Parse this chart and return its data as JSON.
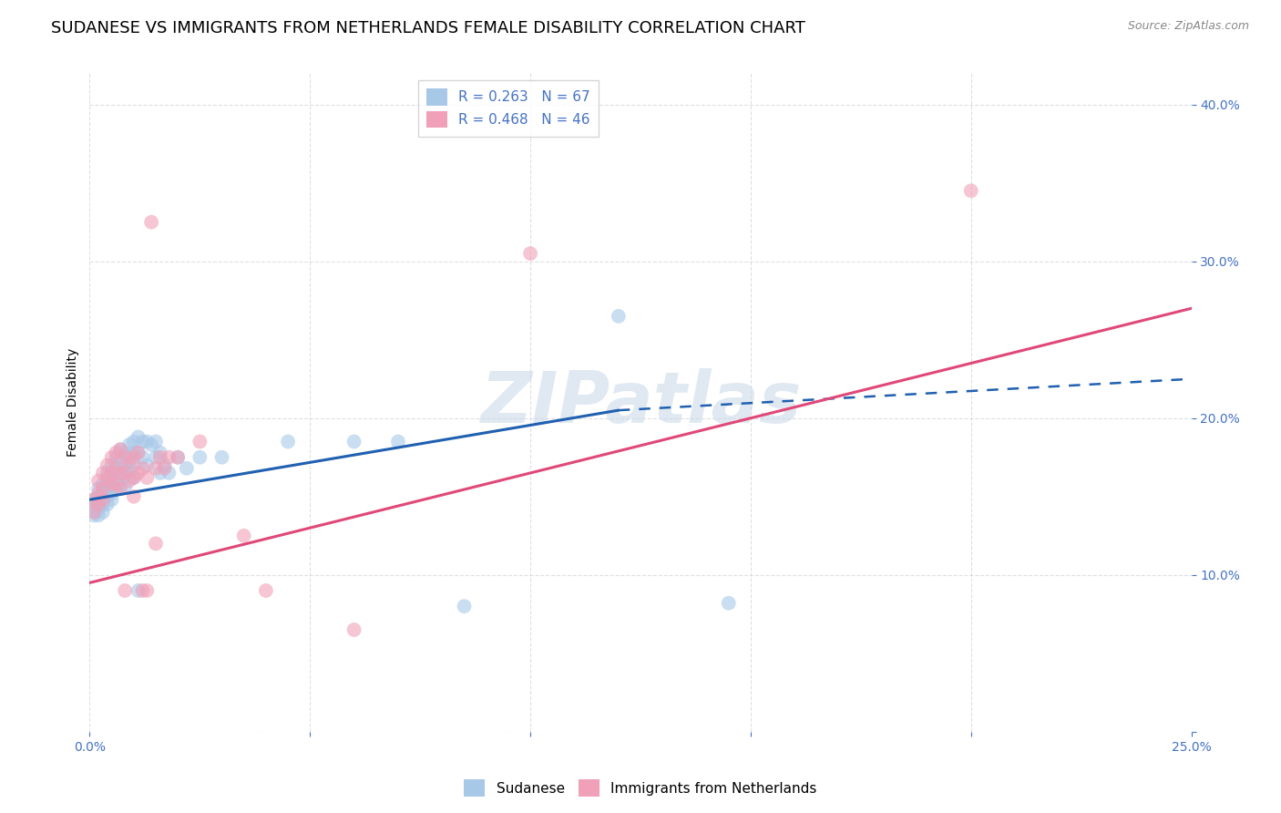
{
  "title": "SUDANESE VS IMMIGRANTS FROM NETHERLANDS FEMALE DISABILITY CORRELATION CHART",
  "source": "Source: ZipAtlas.com",
  "ylabel": "Female Disability",
  "watermark": "ZIPatlas",
  "xlim": [
    0.0,
    0.25
  ],
  "ylim": [
    0.0,
    0.42
  ],
  "xticks": [
    0.0,
    0.05,
    0.1,
    0.15,
    0.2,
    0.25
  ],
  "yticks": [
    0.0,
    0.1,
    0.2,
    0.3,
    0.4
  ],
  "sudanese_color": "#a8c8e8",
  "netherlands_color": "#f0a0b8",
  "line_blue_color": "#2060b0",
  "line_pink_color": "#e04878",
  "legend_R1": "R = 0.263",
  "legend_N1": "N = 67",
  "legend_R2": "R = 0.468",
  "legend_N2": "N = 46",
  "sudanese_points": [
    [
      0.001,
      0.148
    ],
    [
      0.001,
      0.145
    ],
    [
      0.001,
      0.14
    ],
    [
      0.001,
      0.138
    ],
    [
      0.002,
      0.155
    ],
    [
      0.002,
      0.15
    ],
    [
      0.002,
      0.145
    ],
    [
      0.002,
      0.142
    ],
    [
      0.002,
      0.138
    ],
    [
      0.003,
      0.158
    ],
    [
      0.003,
      0.155
    ],
    [
      0.003,
      0.15
    ],
    [
      0.003,
      0.145
    ],
    [
      0.003,
      0.14
    ],
    [
      0.004,
      0.165
    ],
    [
      0.004,
      0.16
    ],
    [
      0.004,
      0.155
    ],
    [
      0.004,
      0.15
    ],
    [
      0.004,
      0.145
    ],
    [
      0.005,
      0.17
    ],
    [
      0.005,
      0.165
    ],
    [
      0.005,
      0.158
    ],
    [
      0.005,
      0.152
    ],
    [
      0.005,
      0.148
    ],
    [
      0.006,
      0.175
    ],
    [
      0.006,
      0.168
    ],
    [
      0.006,
      0.162
    ],
    [
      0.006,
      0.155
    ],
    [
      0.007,
      0.18
    ],
    [
      0.007,
      0.172
    ],
    [
      0.007,
      0.165
    ],
    [
      0.007,
      0.158
    ],
    [
      0.008,
      0.178
    ],
    [
      0.008,
      0.17
    ],
    [
      0.008,
      0.163
    ],
    [
      0.008,
      0.156
    ],
    [
      0.009,
      0.183
    ],
    [
      0.009,
      0.175
    ],
    [
      0.009,
      0.167
    ],
    [
      0.01,
      0.185
    ],
    [
      0.01,
      0.178
    ],
    [
      0.01,
      0.17
    ],
    [
      0.01,
      0.162
    ],
    [
      0.011,
      0.188
    ],
    [
      0.011,
      0.178
    ],
    [
      0.011,
      0.09
    ],
    [
      0.012,
      0.185
    ],
    [
      0.012,
      0.175
    ],
    [
      0.013,
      0.185
    ],
    [
      0.013,
      0.17
    ],
    [
      0.014,
      0.183
    ],
    [
      0.015,
      0.185
    ],
    [
      0.015,
      0.175
    ],
    [
      0.016,
      0.178
    ],
    [
      0.016,
      0.165
    ],
    [
      0.017,
      0.17
    ],
    [
      0.018,
      0.165
    ],
    [
      0.02,
      0.175
    ],
    [
      0.022,
      0.168
    ],
    [
      0.025,
      0.175
    ],
    [
      0.03,
      0.175
    ],
    [
      0.045,
      0.185
    ],
    [
      0.06,
      0.185
    ],
    [
      0.07,
      0.185
    ],
    [
      0.085,
      0.08
    ],
    [
      0.12,
      0.265
    ],
    [
      0.145,
      0.082
    ]
  ],
  "netherlands_points": [
    [
      0.001,
      0.148
    ],
    [
      0.001,
      0.14
    ],
    [
      0.002,
      0.16
    ],
    [
      0.002,
      0.152
    ],
    [
      0.002,
      0.145
    ],
    [
      0.003,
      0.165
    ],
    [
      0.003,
      0.155
    ],
    [
      0.003,
      0.148
    ],
    [
      0.004,
      0.17
    ],
    [
      0.004,
      0.162
    ],
    [
      0.005,
      0.175
    ],
    [
      0.005,
      0.165
    ],
    [
      0.005,
      0.158
    ],
    [
      0.006,
      0.178
    ],
    [
      0.006,
      0.168
    ],
    [
      0.006,
      0.158
    ],
    [
      0.007,
      0.18
    ],
    [
      0.007,
      0.165
    ],
    [
      0.007,
      0.155
    ],
    [
      0.008,
      0.175
    ],
    [
      0.008,
      0.165
    ],
    [
      0.008,
      0.09
    ],
    [
      0.009,
      0.172
    ],
    [
      0.009,
      0.16
    ],
    [
      0.01,
      0.175
    ],
    [
      0.01,
      0.162
    ],
    [
      0.01,
      0.15
    ],
    [
      0.011,
      0.178
    ],
    [
      0.011,
      0.165
    ],
    [
      0.012,
      0.168
    ],
    [
      0.012,
      0.09
    ],
    [
      0.013,
      0.162
    ],
    [
      0.013,
      0.09
    ],
    [
      0.014,
      0.325
    ],
    [
      0.015,
      0.168
    ],
    [
      0.015,
      0.12
    ],
    [
      0.016,
      0.175
    ],
    [
      0.017,
      0.168
    ],
    [
      0.018,
      0.175
    ],
    [
      0.02,
      0.175
    ],
    [
      0.025,
      0.185
    ],
    [
      0.035,
      0.125
    ],
    [
      0.04,
      0.09
    ],
    [
      0.06,
      0.065
    ],
    [
      0.1,
      0.305
    ],
    [
      0.2,
      0.345
    ]
  ],
  "blue_line_solid": {
    "x0": 0.0,
    "y0": 0.148,
    "x1": 0.12,
    "y1": 0.205
  },
  "blue_line_dashed": {
    "x0": 0.12,
    "y0": 0.205,
    "x1": 0.25,
    "y1": 0.225
  },
  "pink_line": {
    "x0": 0.0,
    "y0": 0.095,
    "x1": 0.25,
    "y1": 0.27
  },
  "background_color": "#ffffff",
  "grid_color": "#cccccc",
  "title_fontsize": 13,
  "axis_label_fontsize": 10,
  "tick_fontsize": 10,
  "legend_fontsize": 11
}
